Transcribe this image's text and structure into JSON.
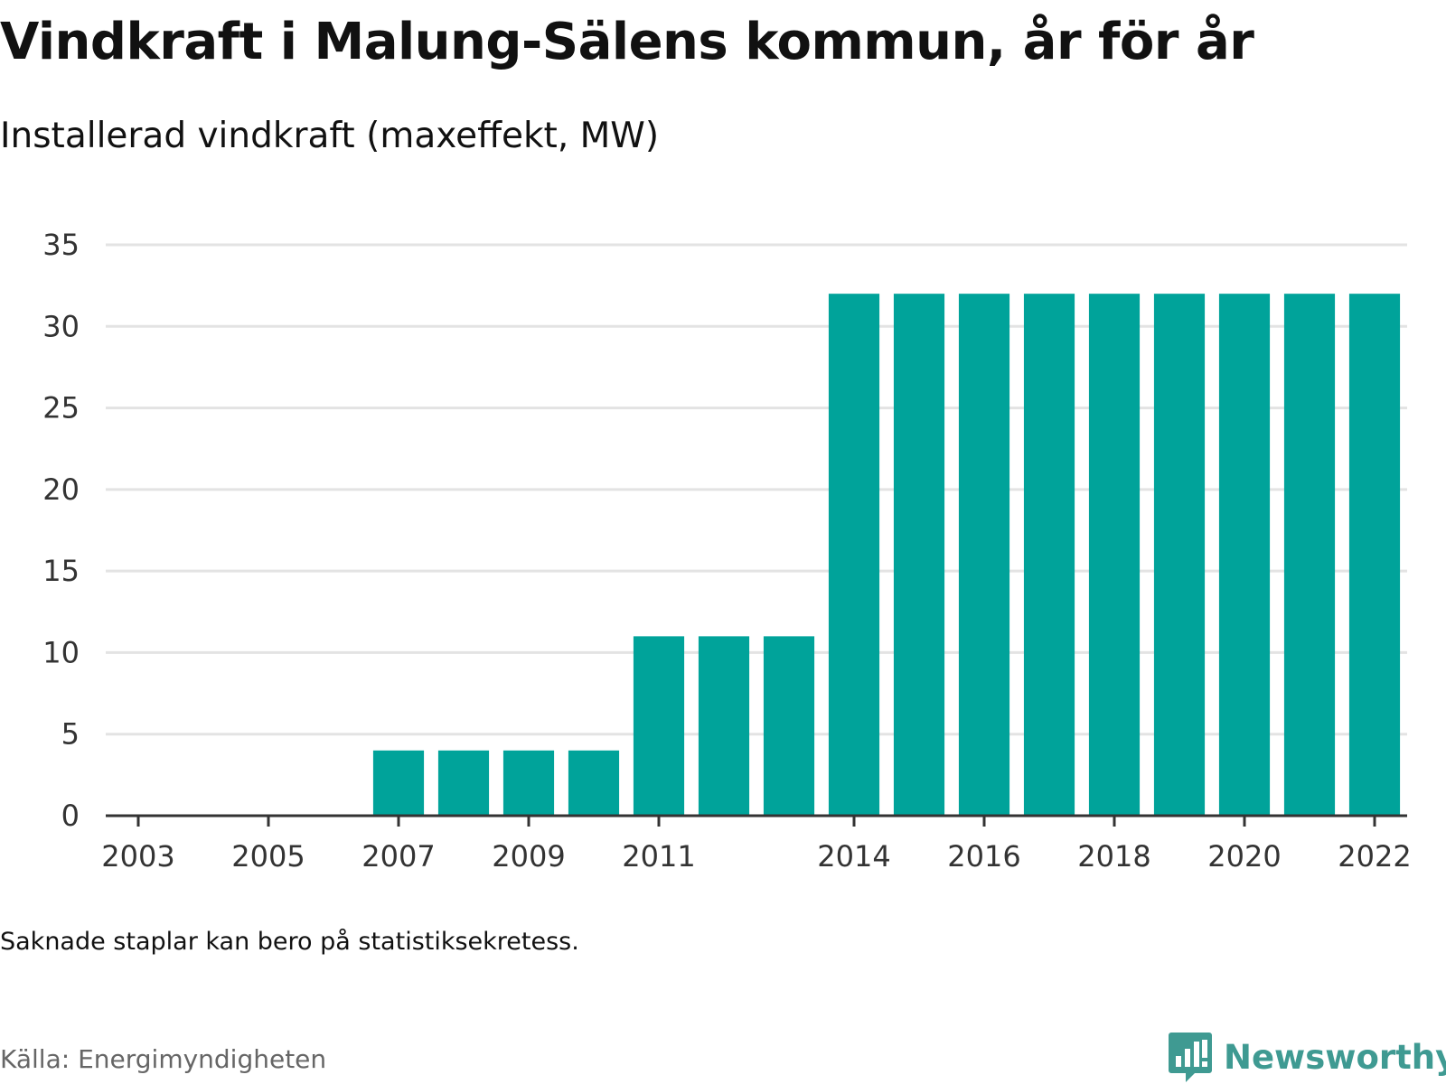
{
  "chart_data": {
    "type": "bar",
    "title": "Vindkraft i Malung-Sälens kommun, år för år",
    "subtitle": "Installerad vindkraft (maxeffekt, MW)",
    "categories": [
      2003,
      2004,
      2005,
      2006,
      2007,
      2008,
      2009,
      2010,
      2011,
      2012,
      2013,
      2014,
      2015,
      2016,
      2017,
      2018,
      2019,
      2020,
      2021,
      2022
    ],
    "values": [
      0,
      0,
      0,
      0,
      4,
      4,
      4,
      4,
      11,
      11,
      11,
      32,
      32,
      32,
      32,
      32,
      32,
      32,
      32,
      32
    ],
    "x_tick_labels": [
      "2003",
      "2005",
      "2007",
      "2009",
      "2011",
      "2014",
      "2016",
      "2018",
      "2020",
      "2022"
    ],
    "y_ticks": [
      0,
      5,
      10,
      15,
      20,
      25,
      30,
      35
    ],
    "ylim": [
      0,
      35
    ],
    "grid": true,
    "bar_color": "#00a39a",
    "grid_color": "#e3e3e3",
    "axis_color": "#333333"
  },
  "footer": {
    "note": "Saknade staplar kan bero på statistiksekretess.",
    "source": "Källa: Energimyndigheten",
    "brand": "Newsworthy",
    "brand_icon": "newsworthy-logo-icon"
  }
}
